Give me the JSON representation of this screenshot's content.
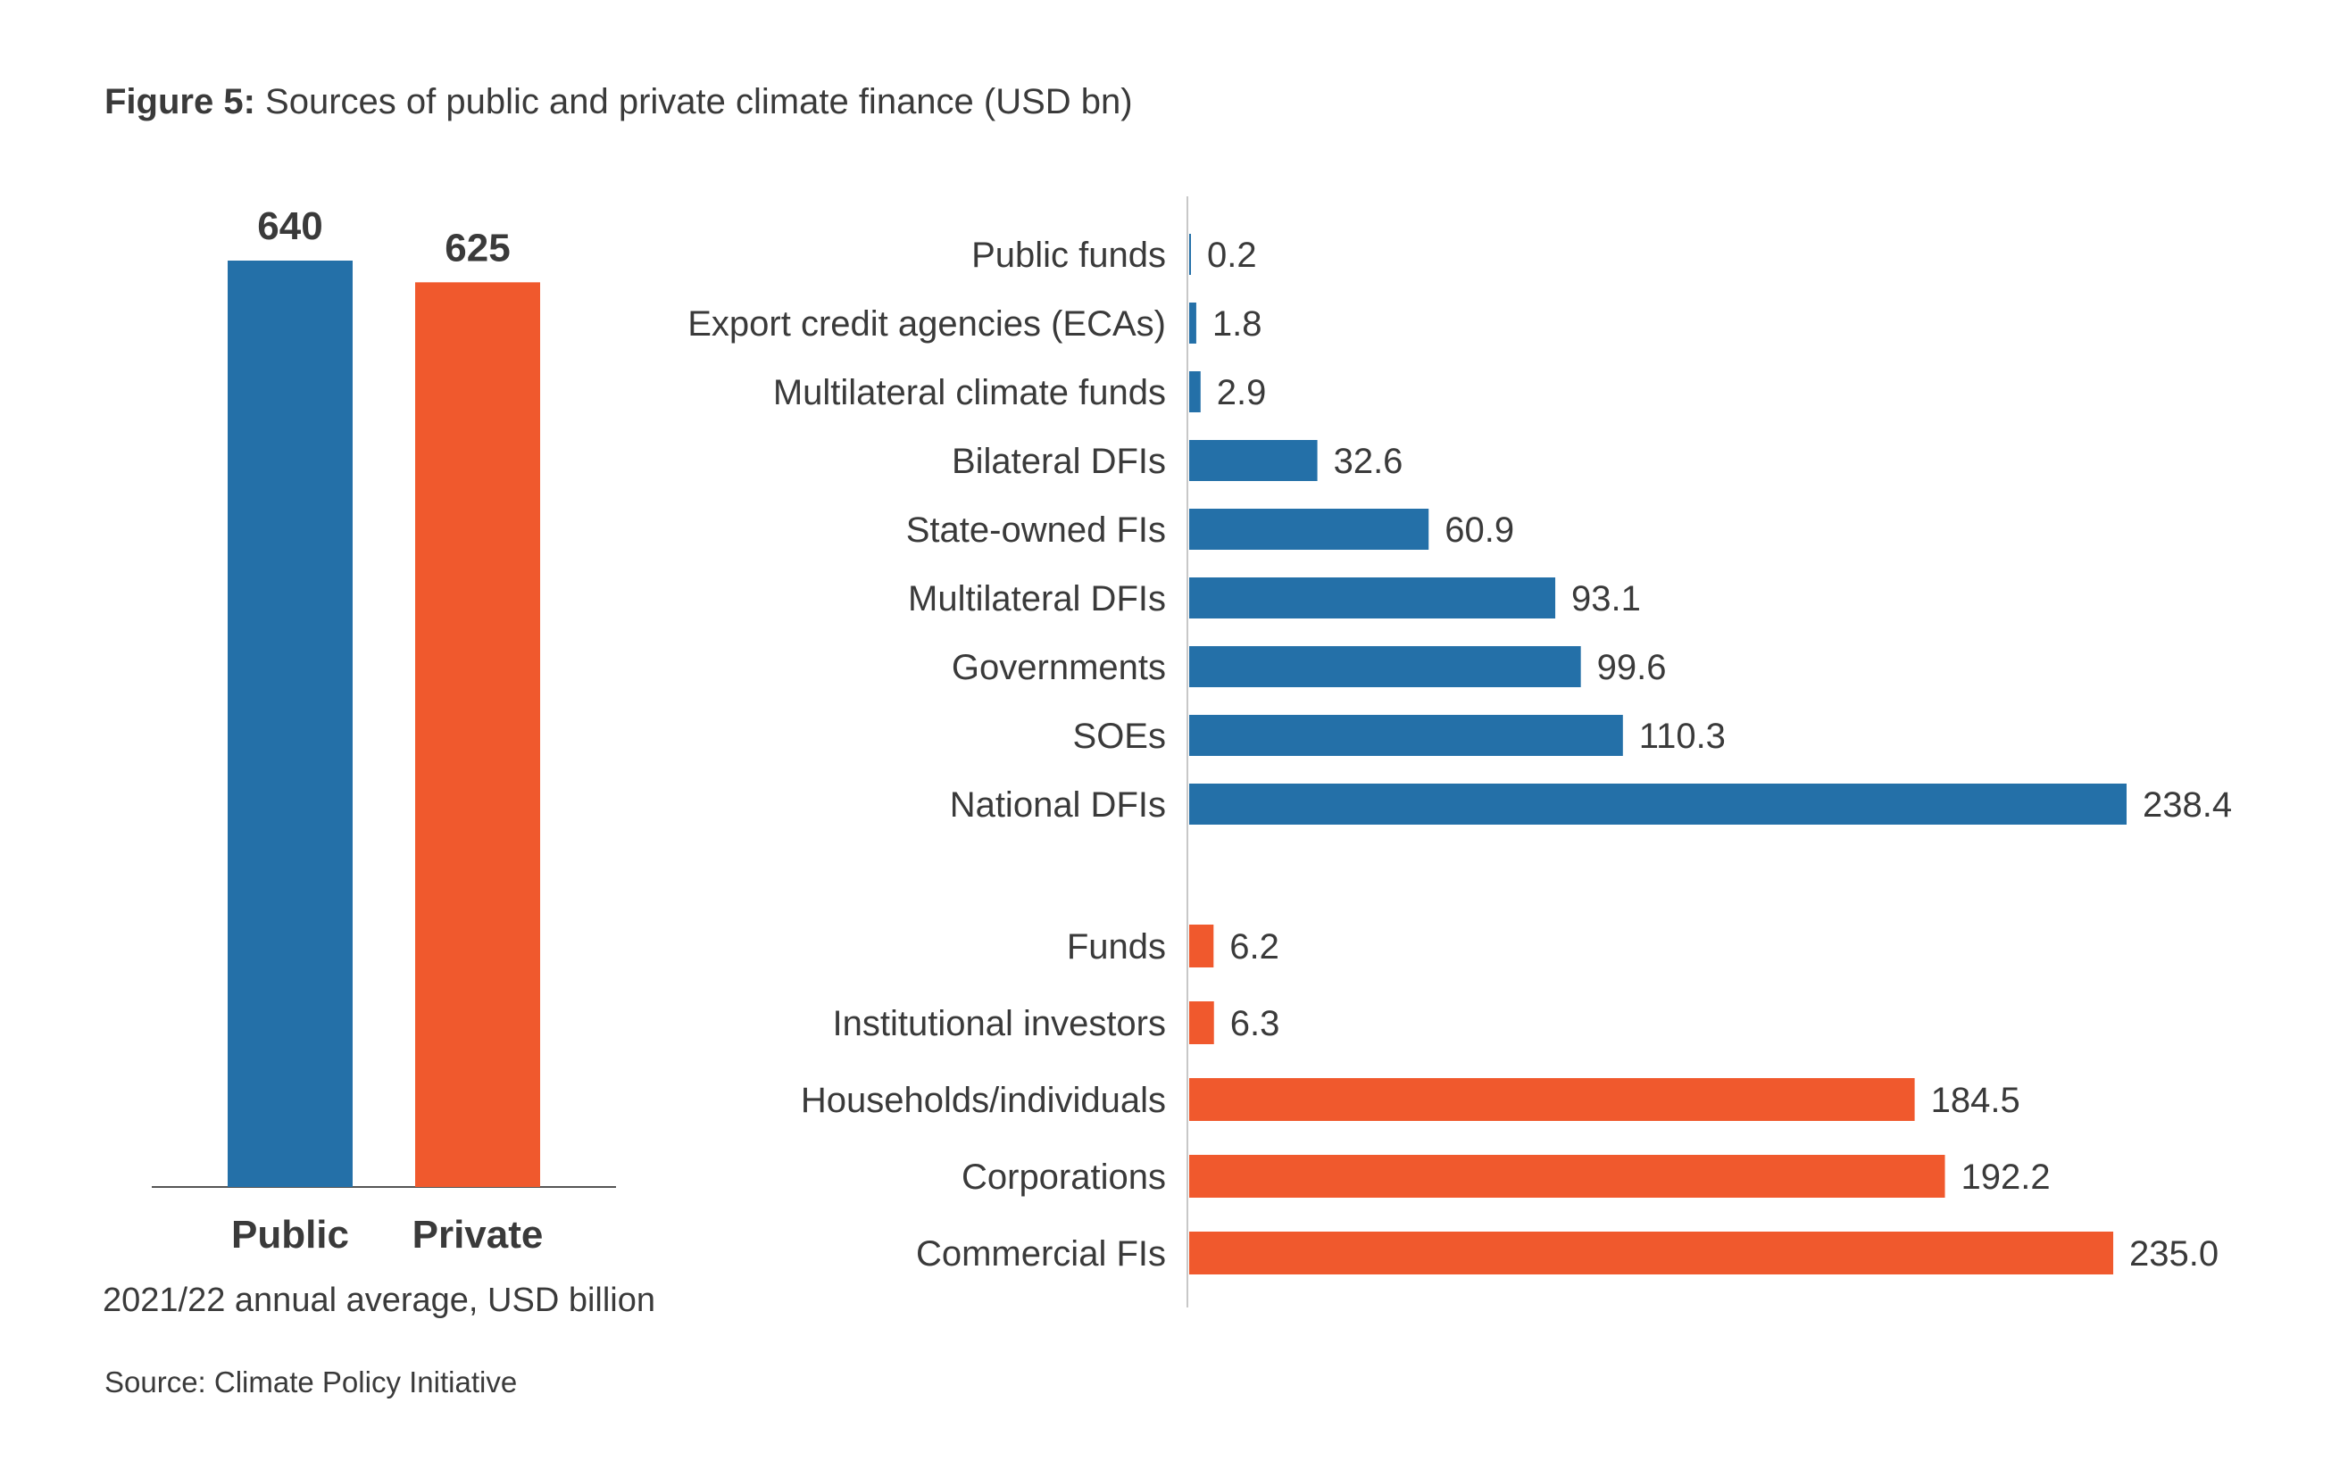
{
  "figure": {
    "label": "Figure 5:",
    "title": "Sources of public and private climate finance (USD bn)",
    "note": "2021/22 annual average, USD billion",
    "source": "Source: Climate Policy Initiative"
  },
  "colors": {
    "public": "#2470a8",
    "private": "#f0592d",
    "axis": "#c8c8c8",
    "baseline": "#555555",
    "text": "#3a3a3a"
  },
  "chart_data": [
    {
      "type": "bar",
      "categories": [
        "Public",
        "Private"
      ],
      "values": [
        640,
        625
      ],
      "data_labels": [
        "640",
        "625"
      ],
      "colors": [
        "#2470a8",
        "#f0592d"
      ],
      "ylim": [
        0,
        640
      ]
    },
    {
      "type": "bar",
      "orientation": "horizontal",
      "xlim": [
        0,
        238.4
      ],
      "groups": [
        {
          "group": "public",
          "color": "#2470a8",
          "categories": [
            "Public funds",
            "Export credit agencies (ECAs)",
            "Multilateral climate funds",
            "Bilateral DFIs",
            "State-owned FIs",
            "Multilateral DFIs",
            "Governments",
            "SOEs",
            "National DFIs"
          ],
          "values": [
            0.2,
            1.8,
            2.9,
            32.6,
            60.9,
            93.1,
            99.6,
            110.3,
            238.4
          ],
          "data_labels": [
            "0.2",
            "1.8",
            "2.9",
            "32.6",
            "60.9",
            "93.1",
            "99.6",
            "110.3",
            "238.4"
          ]
        },
        {
          "group": "private",
          "color": "#f0592d",
          "categories": [
            "Funds",
            "Institutional investors",
            "Households/individuals",
            "Corporations",
            "Commercial FIs"
          ],
          "values": [
            6.2,
            6.3,
            184.5,
            192.2,
            235.0
          ],
          "data_labels": [
            "6.2",
            "6.3",
            "184.5",
            "192.2",
            "235.0"
          ]
        }
      ]
    }
  ]
}
